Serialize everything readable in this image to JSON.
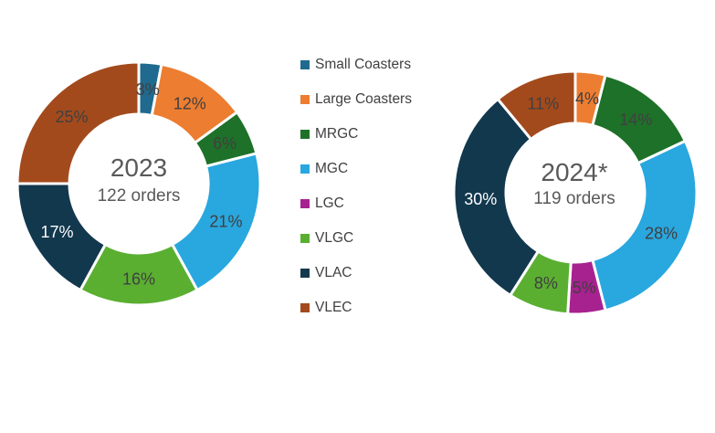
{
  "canvas": {
    "background": "#FFFFFF"
  },
  "legend": {
    "text_color": "#404040",
    "items": [
      {
        "label": "Small Coasters",
        "color": "#1F6A8E"
      },
      {
        "label": "Large Coasters",
        "color": "#ED7D31"
      },
      {
        "label": "MRGC",
        "color": "#1E7128"
      },
      {
        "label": "MGC",
        "color": "#29A7DF"
      },
      {
        "label": "LGC",
        "color": "#A7218F"
      },
      {
        "label": "VLGC",
        "color": "#5AAF31"
      },
      {
        "label": "VLAC",
        "color": "#12384E"
      },
      {
        "label": "VLEC",
        "color": "#A34A1D"
      }
    ]
  },
  "chart_data": [
    {
      "type": "pie",
      "variant": "donut",
      "center_title": "2023",
      "center_subtitle": "122 orders",
      "total_orders": 122,
      "unit": "%",
      "categories": [
        "Small Coasters",
        "Large Coasters",
        "MRGC",
        "MGC",
        "LGC",
        "VLGC",
        "VLAC",
        "VLEC"
      ],
      "values": [
        3,
        12,
        6,
        21,
        0,
        16,
        17,
        25
      ],
      "colors": [
        "#1F6A8E",
        "#ED7D31",
        "#1E7128",
        "#29A7DF",
        "#A7218F",
        "#5AAF31",
        "#12384E",
        "#A34A1D"
      ],
      "label_colors": [
        "#404040",
        "#404040",
        "#404040",
        "#404040",
        "#404040",
        "#404040",
        "#FFFFFF",
        "#404040"
      ]
    },
    {
      "type": "pie",
      "variant": "donut",
      "center_title": "2024*",
      "center_subtitle": "119 orders",
      "total_orders": 119,
      "unit": "%",
      "categories": [
        "Small Coasters",
        "Large Coasters",
        "MRGC",
        "MGC",
        "LGC",
        "VLGC",
        "VLAC",
        "VLEC"
      ],
      "values": [
        0,
        4,
        14,
        28,
        5,
        8,
        30,
        11
      ],
      "colors": [
        "#1F6A8E",
        "#ED7D31",
        "#1E7128",
        "#29A7DF",
        "#A7218F",
        "#5AAF31",
        "#12384E",
        "#A34A1D"
      ],
      "label_colors": [
        "#404040",
        "#404040",
        "#404040",
        "#404040",
        "#404040",
        "#404040",
        "#FFFFFF",
        "#404040"
      ]
    }
  ]
}
